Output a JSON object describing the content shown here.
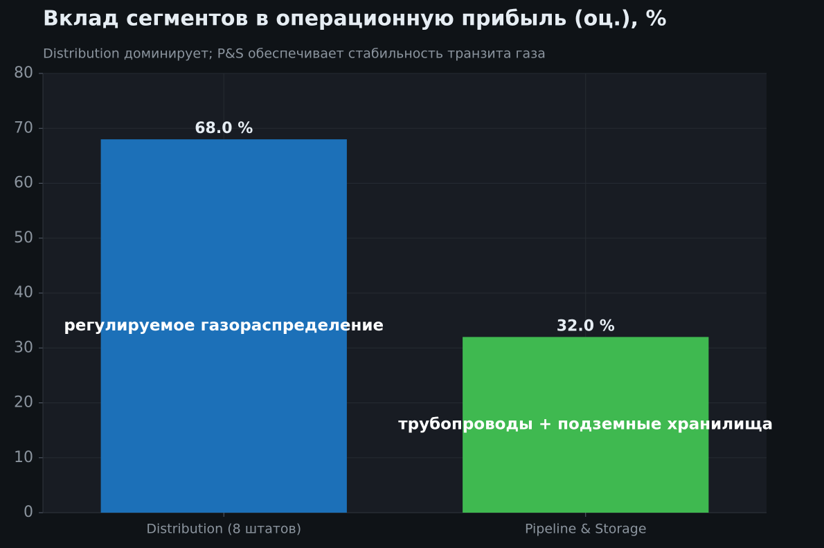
{
  "chart_data": {
    "type": "bar",
    "title": "Вклад сегментов в операционную прибыль (оц.), %",
    "subtitle": "Distribution доминирует; P&S обеспечивает стабильность транзита газа",
    "categories": [
      "Distribution (8 штатов)",
      "Pipeline & Storage"
    ],
    "values": [
      68.0,
      32.0
    ],
    "value_labels": [
      "68.0 %",
      "32.0 %"
    ],
    "annotations": [
      "регулируемое газораспределение",
      "трубопроводы + подземные хранилища"
    ],
    "colors": [
      "#1c70b8",
      "#3fb950"
    ],
    "ylim": [
      0,
      80
    ],
    "yticks": [
      0,
      10,
      20,
      30,
      40,
      50,
      60,
      70,
      80
    ],
    "grid": true
  }
}
